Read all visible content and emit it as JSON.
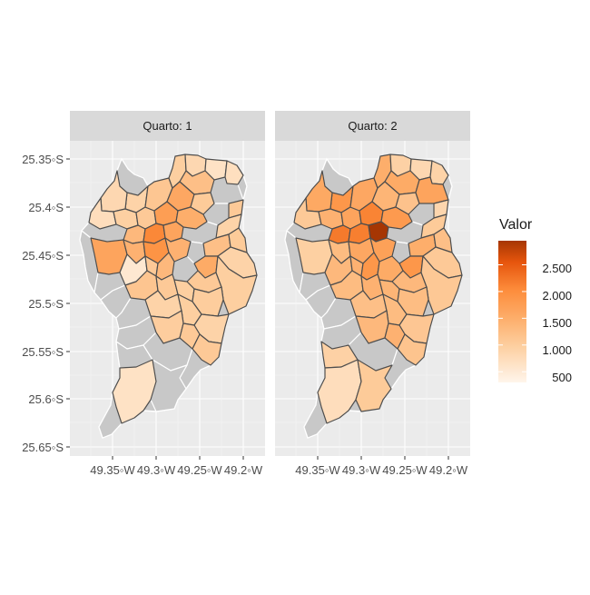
{
  "panels": [
    {
      "strip": "Quarto: 1"
    },
    {
      "strip": "Quarto: 2"
    }
  ],
  "axes": {
    "y_ticks": [
      "25.35◦S",
      "25.4◦S",
      "25.45◦S",
      "25.5◦S",
      "25.55◦S",
      "25.6◦S",
      "25.65◦S"
    ],
    "x_ticks": [
      "49.35◦W",
      "49.3◦W",
      "49.25◦W",
      "49.2◦W"
    ]
  },
  "legend": {
    "title": "Valor",
    "labels": [
      "2.500",
      "2.000",
      "1.500",
      "1.000",
      "500"
    ],
    "range": [
      300,
      2950
    ],
    "tick_values": [
      2500,
      2000,
      1500,
      1000,
      500
    ],
    "colors": [
      "#fff5eb",
      "#fdd0a2",
      "#fdae6b",
      "#fd8d3c",
      "#e6550d",
      "#a63603"
    ]
  },
  "colors": {
    "panel_bg": "#ebebeb",
    "strip_bg": "#d9d9d9",
    "missing": "#c8c8c8"
  }
}
